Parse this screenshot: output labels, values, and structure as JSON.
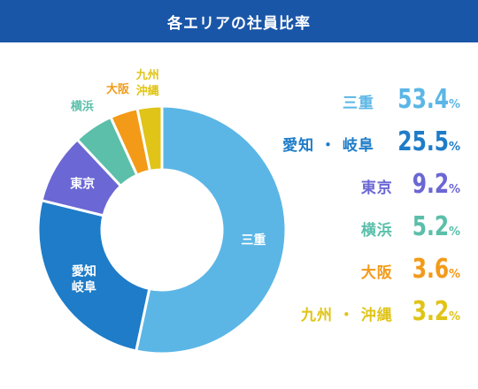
{
  "header": {
    "title": "各エリアの社員比率"
  },
  "chart_data": {
    "type": "pie",
    "title": "各エリアの社員比率",
    "unit": "%",
    "slices": [
      {
        "name": "三重",
        "legend_label": "三重",
        "chart_label": "三重",
        "value": 53.4,
        "display": "53.4",
        "color": "#5bb6e6"
      },
      {
        "name": "愛知・岐阜",
        "legend_label": "愛知・岐阜",
        "chart_label": "愛知\n岐阜",
        "value": 25.5,
        "display": "25.5",
        "color": "#1e7cc8"
      },
      {
        "name": "東京",
        "legend_label": "東京",
        "chart_label": "東京",
        "value": 9.2,
        "display": "9.2",
        "color": "#6b67d4"
      },
      {
        "name": "横浜",
        "legend_label": "横浜",
        "chart_label": "横浜",
        "value": 5.2,
        "display": "5.2",
        "color": "#5bbfaa"
      },
      {
        "name": "大阪",
        "legend_label": "大阪",
        "chart_label": "大阪",
        "value": 3.6,
        "display": "3.6",
        "color": "#f39a18"
      },
      {
        "name": "九州・沖縄",
        "legend_label": "九州・沖縄",
        "chart_label": "九州\n沖縄",
        "value": 3.2,
        "display": "3.2",
        "color": "#e0c417"
      }
    ]
  }
}
